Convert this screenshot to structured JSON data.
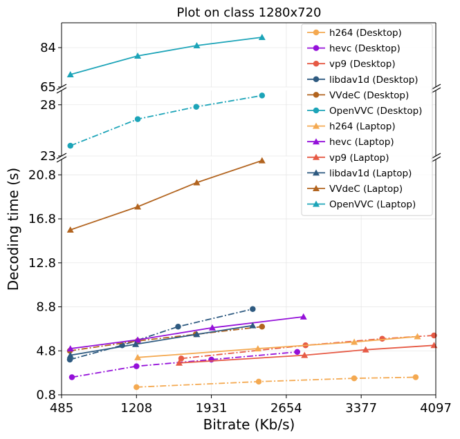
{
  "chart_data": {
    "type": "line",
    "title": "Plot on class 1280x720",
    "xlabel": "Bitrate (Kb/s)",
    "ylabel": "Decoding time (s)",
    "xlim": [
      485,
      4097
    ],
    "xticks": [
      "485",
      "1208",
      "1931",
      "2654",
      "3377",
      "4097"
    ],
    "grid": true,
    "legend_position": "top-right",
    "broken_y_axis": true,
    "panels": [
      {
        "name": "top",
        "ylim": [
          65,
          96
        ],
        "yticks": [
          "65",
          "84"
        ]
      },
      {
        "name": "middle",
        "ylim": [
          23,
          29.4
        ],
        "yticks": [
          "23",
          "28"
        ]
      },
      {
        "name": "bottom",
        "ylim": [
          0.8,
          22.2
        ],
        "yticks": [
          "0.8",
          "4.8",
          "8.8",
          "12.8",
          "16.8",
          "20.8"
        ]
      }
    ],
    "series": [
      {
        "name": "h264 (Desktop)",
        "color": "#f4a951",
        "marker": "circle",
        "linestyle": "dashdot",
        "x": [
          1208,
          2388,
          3309,
          3903
        ],
        "y": [
          1.5,
          2.0,
          2.3,
          2.4
        ]
      },
      {
        "name": "hevc (Desktop)",
        "color": "#9410d9",
        "marker": "circle",
        "linestyle": "dashdot",
        "x": [
          585,
          1208,
          1931,
          2760
        ],
        "y": [
          2.4,
          3.4,
          4.0,
          4.7
        ]
      },
      {
        "name": "vp9 (Desktop)",
        "color": "#e65a45",
        "marker": "circle",
        "linestyle": "dashdot",
        "x": [
          1640,
          2840,
          3580,
          4080
        ],
        "y": [
          4.1,
          5.3,
          5.9,
          6.2
        ]
      },
      {
        "name": "libdav1d (Desktop)",
        "color": "#2e5a80",
        "marker": "circle",
        "linestyle": "dashdot",
        "x": [
          565,
          1070,
          1610,
          2330
        ],
        "y": [
          4.0,
          5.3,
          7.0,
          8.6
        ]
      },
      {
        "name": "VVdeC (Desktop)",
        "color": "#b2641f",
        "marker": "circle",
        "linestyle": "dashdot",
        "x": [
          565,
          1220,
          1780,
          2420
        ],
        "y": [
          4.8,
          5.7,
          6.3,
          7.0
        ]
      },
      {
        "name": "OpenVVC (Desktop)",
        "color": "#1ca4b8",
        "marker": "circle",
        "linestyle": "dashdot",
        "x": [
          570,
          1220,
          1785,
          2420
        ],
        "y": [
          24.0,
          26.6,
          27.8,
          28.9
        ]
      },
      {
        "name": "h264 (Laptop)",
        "color": "#f4a951",
        "marker": "triangle",
        "linestyle": "solid",
        "x": [
          1220,
          2380,
          3310,
          3920
        ],
        "y": [
          4.2,
          5.0,
          5.6,
          6.1
        ]
      },
      {
        "name": "hevc (Laptop)",
        "color": "#9410d9",
        "marker": "triangle",
        "linestyle": "solid",
        "x": [
          570,
          1220,
          1940,
          2820
        ],
        "y": [
          5.0,
          5.8,
          6.9,
          7.9
        ]
      },
      {
        "name": "vp9 (Laptop)",
        "color": "#e65a45",
        "marker": "triangle",
        "linestyle": "solid",
        "x": [
          1620,
          2830,
          3420,
          4080
        ],
        "y": [
          3.7,
          4.4,
          4.9,
          5.3
        ]
      },
      {
        "name": "libdav1d (Laptop)",
        "color": "#2e5a80",
        "marker": "triangle",
        "linestyle": "solid",
        "x": [
          570,
          1200,
          1790,
          2330
        ],
        "y": [
          4.4,
          5.4,
          6.3,
          7.1
        ]
      },
      {
        "name": "VVdeC (Laptop)",
        "color": "#b2641f",
        "marker": "triangle",
        "linestyle": "solid",
        "x": [
          570,
          1220,
          1790,
          2420
        ],
        "y": [
          15.8,
          17.9,
          20.1,
          22.1
        ]
      },
      {
        "name": "OpenVVC (Laptop)",
        "color": "#1ca4b8",
        "marker": "triangle",
        "linestyle": "solid",
        "x": [
          570,
          1220,
          1790,
          2420
        ],
        "y": [
          71.0,
          80.0,
          85.0,
          89.0
        ]
      }
    ]
  }
}
